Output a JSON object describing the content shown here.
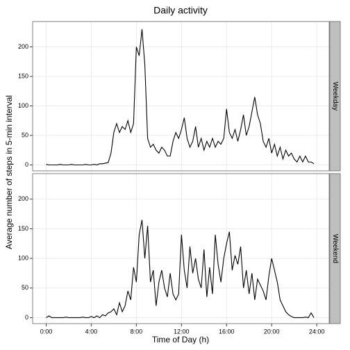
{
  "title": "Daily activity",
  "xlabel": "Time of Day (h)",
  "ylabel": "Average number of steps in 5-min interval",
  "chart_data": [
    {
      "type": "line",
      "facet": "Weekday",
      "x": [
        0,
        0.25,
        0.5,
        0.75,
        1,
        1.25,
        1.5,
        1.75,
        2,
        2.25,
        2.5,
        2.75,
        3,
        3.25,
        3.5,
        3.75,
        4,
        4.25,
        4.5,
        4.75,
        5,
        5.25,
        5.5,
        5.75,
        6,
        6.25,
        6.5,
        6.75,
        7,
        7.25,
        7.5,
        7.75,
        8,
        8.25,
        8.5,
        8.75,
        9,
        9.25,
        9.5,
        9.75,
        10,
        10.25,
        10.5,
        10.75,
        11,
        11.25,
        11.5,
        11.75,
        12,
        12.25,
        12.5,
        12.75,
        13,
        13.25,
        13.5,
        13.75,
        14,
        14.25,
        14.5,
        14.75,
        15,
        15.25,
        15.5,
        15.75,
        16,
        16.25,
        16.5,
        16.75,
        17,
        17.25,
        17.5,
        17.75,
        18,
        18.25,
        18.5,
        18.75,
        19,
        19.25,
        19.5,
        19.75,
        20,
        20.25,
        20.5,
        20.75,
        21,
        21.25,
        21.5,
        21.75,
        22,
        22.25,
        22.5,
        22.75,
        23,
        23.25,
        23.5,
        23.75
      ],
      "series": [
        {
          "color": "#000000",
          "values": [
            1,
            0,
            0,
            0,
            0,
            1,
            0,
            0,
            0,
            1,
            0,
            0,
            0,
            0,
            1,
            0,
            0,
            1,
            0,
            2,
            2,
            3,
            4,
            20,
            55,
            70,
            55,
            65,
            60,
            75,
            55,
            70,
            200,
            185,
            230,
            170,
            45,
            30,
            35,
            25,
            20,
            30,
            25,
            15,
            15,
            40,
            55,
            45,
            60,
            80,
            45,
            30,
            40,
            65,
            30,
            45,
            25,
            40,
            30,
            45,
            30,
            40,
            35,
            45,
            95,
            55,
            45,
            60,
            40,
            60,
            85,
            50,
            65,
            90,
            115,
            85,
            70,
            40,
            30,
            45,
            20,
            35,
            15,
            30,
            10,
            25,
            15,
            20,
            10,
            5,
            15,
            5,
            15,
            5,
            5,
            2
          ]
        }
      ],
      "xlim": [
        -1.2,
        25.1
      ],
      "ylim": [
        -10,
        243
      ],
      "xticks": [
        {
          "value": 0,
          "label": "0:00"
        },
        {
          "value": 4,
          "label": "4:00"
        },
        {
          "value": 8,
          "label": "8:00"
        },
        {
          "value": 12,
          "label": "12:00"
        },
        {
          "value": 16,
          "label": "16:00"
        },
        {
          "value": 20,
          "label": "20:00"
        },
        {
          "value": 24,
          "label": "24:00"
        }
      ],
      "yticks": [
        0,
        50,
        100,
        150,
        200
      ],
      "grid": true
    },
    {
      "type": "line",
      "facet": "Weekend",
      "x": [
        0,
        0.25,
        0.5,
        0.75,
        1,
        1.25,
        1.5,
        1.75,
        2,
        2.25,
        2.5,
        2.75,
        3,
        3.25,
        3.5,
        3.75,
        4,
        4.25,
        4.5,
        4.75,
        5,
        5.25,
        5.5,
        5.75,
        6,
        6.25,
        6.5,
        6.75,
        7,
        7.25,
        7.5,
        7.75,
        8,
        8.25,
        8.5,
        8.75,
        9,
        9.25,
        9.5,
        9.75,
        10,
        10.25,
        10.5,
        10.75,
        11,
        11.25,
        11.5,
        11.75,
        12,
        12.25,
        12.5,
        12.75,
        13,
        13.25,
        13.5,
        13.75,
        14,
        14.25,
        14.5,
        14.75,
        15,
        15.25,
        15.5,
        15.75,
        16,
        16.25,
        16.5,
        16.75,
        17,
        17.25,
        17.5,
        17.75,
        18,
        18.25,
        18.5,
        18.75,
        19,
        19.25,
        19.5,
        19.75,
        20,
        20.25,
        20.5,
        20.75,
        21,
        21.25,
        21.5,
        21.75,
        22,
        22.25,
        22.5,
        22.75,
        23,
        23.25,
        23.5,
        23.75
      ],
      "series": [
        {
          "color": "#000000",
          "values": [
            0,
            3,
            0,
            0,
            0,
            0,
            0,
            1,
            0,
            0,
            0,
            0,
            0,
            1,
            0,
            0,
            2,
            0,
            3,
            0,
            5,
            3,
            8,
            10,
            15,
            5,
            25,
            10,
            20,
            45,
            30,
            85,
            60,
            140,
            165,
            100,
            155,
            60,
            80,
            20,
            60,
            80,
            50,
            35,
            75,
            40,
            30,
            40,
            140,
            80,
            50,
            120,
            75,
            100,
            65,
            50,
            115,
            35,
            85,
            40,
            140,
            90,
            60,
            100,
            125,
            145,
            80,
            105,
            90,
            120,
            50,
            80,
            40,
            75,
            30,
            65,
            55,
            45,
            30,
            70,
            100,
            80,
            60,
            30,
            20,
            10,
            5,
            2,
            0,
            0,
            0,
            0,
            1,
            0,
            8,
            0
          ]
        }
      ],
      "xlim": [
        -1.2,
        25.1
      ],
      "ylim": [
        -10,
        243
      ],
      "xticks": [
        {
          "value": 0,
          "label": "0:00"
        },
        {
          "value": 4,
          "label": "4:00"
        },
        {
          "value": 8,
          "label": "8:00"
        },
        {
          "value": 12,
          "label": "12:00"
        },
        {
          "value": 16,
          "label": "16:00"
        },
        {
          "value": 20,
          "label": "20:00"
        },
        {
          "value": 24,
          "label": "24:00"
        }
      ],
      "yticks": [
        0,
        50,
        100,
        150,
        200
      ],
      "grid": true
    }
  ]
}
